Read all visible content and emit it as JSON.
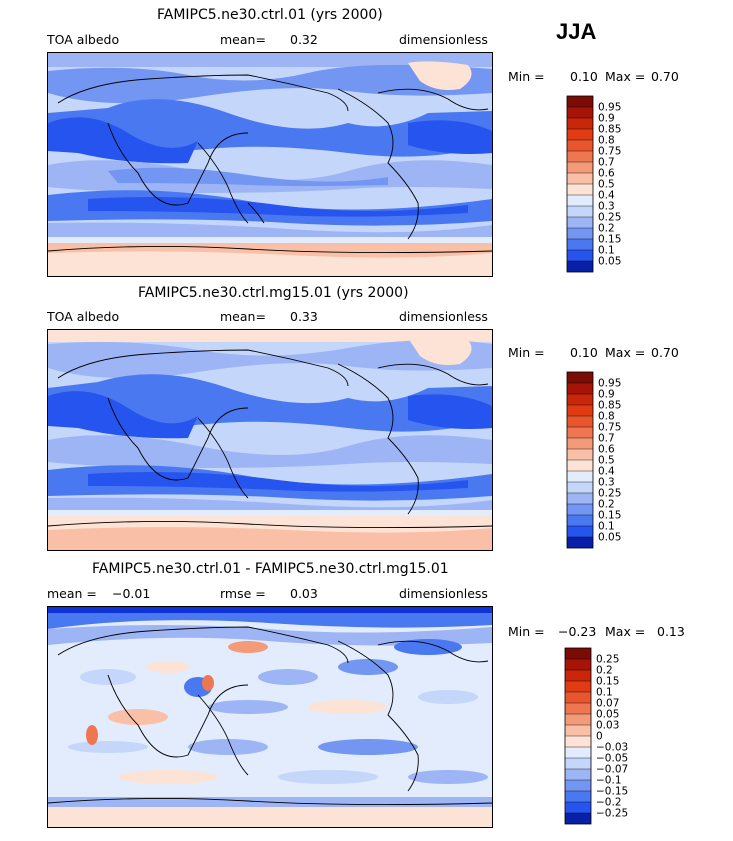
{
  "season_label": "JJA",
  "colors": {
    "blue": [
      "#08106e",
      "#0820a8",
      "#0d33d9",
      "#2554ee",
      "#4a78f0",
      "#7396f2",
      "#9db5f5",
      "#c4d6f9",
      "#e2ecfd"
    ],
    "red": [
      "#fde3d5",
      "#f9c0a7",
      "#f39a79",
      "#ee7650",
      "#e9552d",
      "#e03b12",
      "#c9260a",
      "#a51407",
      "#7a0b05"
    ]
  },
  "panels": [
    {
      "title": "FAMIPC5.ne30.ctrl.01 (yrs 2000)",
      "left_label": "TOA albedo",
      "stat1_label": "mean=",
      "stat1_value": "0.32",
      "stat2_label": "",
      "stat2_value": "",
      "units": "dimensionless",
      "min_label": "Min =",
      "min_value": "0.10",
      "max_label": "Max =",
      "max_value": "0.70",
      "colorbar_levels": [
        "0.95",
        "0.9",
        "0.85",
        "0.8",
        "0.75",
        "0.7",
        "0.6",
        "0.5",
        "0.4",
        "0.3",
        "0.25",
        "0.2",
        "0.15",
        "0.1",
        "0.05"
      ],
      "type": "abs"
    },
    {
      "title": "FAMIPC5.ne30.ctrl.mg15.01 (yrs 2000)",
      "left_label": "TOA albedo",
      "stat1_label": "mean=",
      "stat1_value": "0.33",
      "stat2_label": "",
      "stat2_value": "",
      "units": "dimensionless",
      "min_label": "Min =",
      "min_value": "0.10",
      "max_label": "Max =",
      "max_value": "0.70",
      "colorbar_levels": [
        "0.95",
        "0.9",
        "0.85",
        "0.8",
        "0.75",
        "0.7",
        "0.6",
        "0.5",
        "0.4",
        "0.3",
        "0.25",
        "0.2",
        "0.15",
        "0.1",
        "0.05"
      ],
      "type": "abs"
    },
    {
      "title": "FAMIPC5.ne30.ctrl.01 - FAMIPC5.ne30.ctrl.mg15.01",
      "left_label": "",
      "stat1_label": "mean =",
      "stat1_value": "−0.01",
      "stat2_label": "rmse =",
      "stat2_value": "0.03",
      "units": "dimensionless",
      "min_label": "Min =",
      "min_value": "−0.23",
      "max_label": "Max =",
      "max_value": "0.13",
      "colorbar_levels": [
        "0.25",
        "0.2",
        "0.15",
        "0.1",
        "0.07",
        "0.05",
        "0.03",
        "0",
        "−0.03",
        "−0.05",
        "−0.07",
        "−0.1",
        "−0.15",
        "−0.2",
        "−0.25"
      ],
      "type": "diff"
    }
  ],
  "chart_data": [
    {
      "type": "heatmap",
      "title": "FAMIPC5.ne30.ctrl.01 (yrs 2000)",
      "field": "TOA albedo",
      "season": "JJA",
      "mean": 0.32,
      "min": 0.1,
      "max": 0.7,
      "units": "dimensionless",
      "contour_levels": [
        0.05,
        0.1,
        0.15,
        0.2,
        0.25,
        0.3,
        0.4,
        0.5,
        0.6,
        0.7,
        0.75,
        0.8,
        0.85,
        0.9,
        0.95
      ]
    },
    {
      "type": "heatmap",
      "title": "FAMIPC5.ne30.ctrl.mg15.01 (yrs 2000)",
      "field": "TOA albedo",
      "season": "JJA",
      "mean": 0.33,
      "min": 0.1,
      "max": 0.7,
      "units": "dimensionless",
      "contour_levels": [
        0.05,
        0.1,
        0.15,
        0.2,
        0.25,
        0.3,
        0.4,
        0.5,
        0.6,
        0.7,
        0.75,
        0.8,
        0.85,
        0.9,
        0.95
      ]
    },
    {
      "type": "heatmap",
      "title": "FAMIPC5.ne30.ctrl.01 - FAMIPC5.ne30.ctrl.mg15.01",
      "season": "JJA",
      "mean": -0.01,
      "rmse": 0.03,
      "min": -0.23,
      "max": 0.13,
      "units": "dimensionless",
      "contour_levels": [
        -0.25,
        -0.2,
        -0.15,
        -0.1,
        -0.07,
        -0.05,
        -0.03,
        0,
        0.03,
        0.05,
        0.07,
        0.1,
        0.15,
        0.2,
        0.25
      ]
    }
  ]
}
